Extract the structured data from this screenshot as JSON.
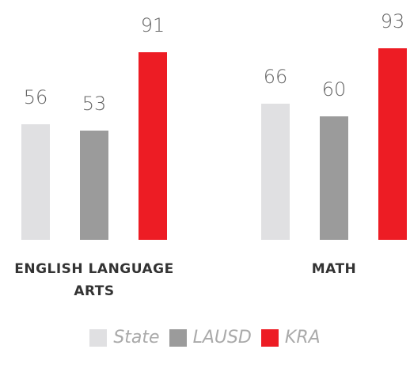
{
  "chart_data": {
    "type": "bar",
    "categories": [
      "ENGLISH LANGUAGE ARTS",
      "MATH"
    ],
    "series": [
      {
        "name": "State",
        "color": "#e0e0e2",
        "values": [
          56,
          66
        ]
      },
      {
        "name": "LAUSD",
        "color": "#9b9b9b",
        "values": [
          53,
          60
        ]
      },
      {
        "name": "KRA",
        "color": "#ed1c24",
        "values": [
          91,
          93
        ]
      }
    ]
  }
}
